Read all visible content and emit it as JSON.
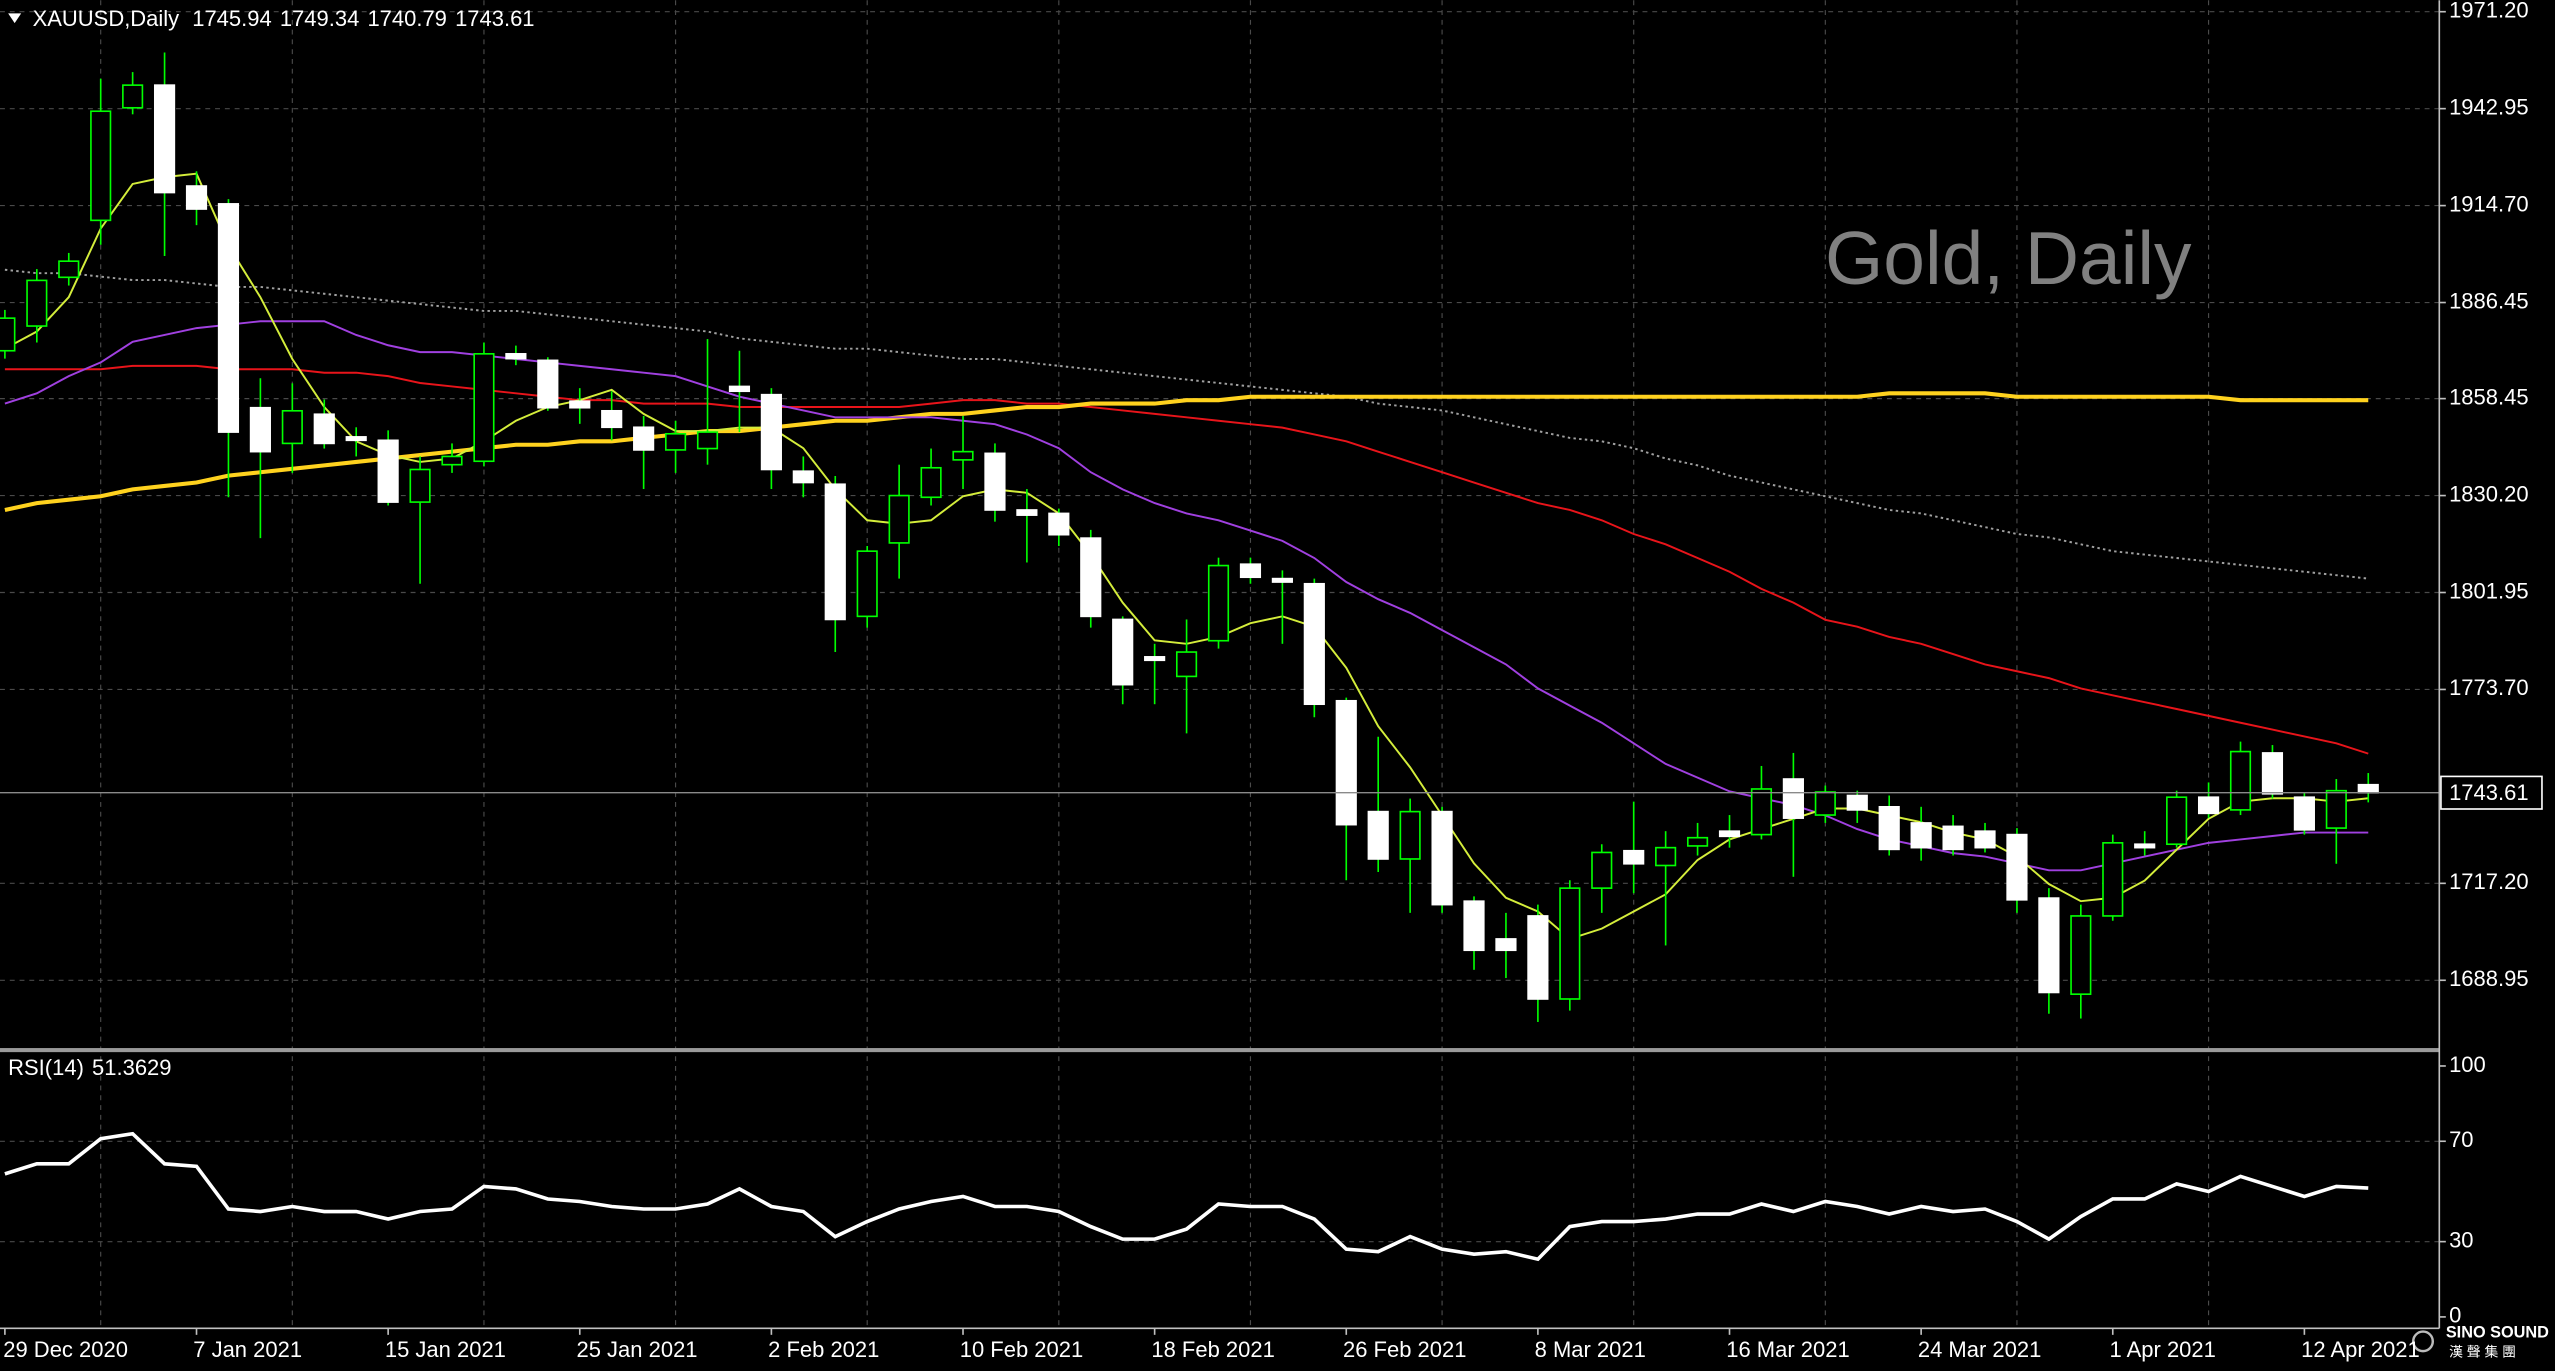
{
  "chart_data": [
    {
      "type": "candlestick",
      "symbol": "XAUUSD,Daily",
      "watermark": "Gold, Daily",
      "categories": [
        "29 Dec 2020",
        null,
        null,
        null,
        null,
        null,
        "7 Jan 2021",
        null,
        null,
        null,
        null,
        null,
        "15 Jan 2021",
        null,
        null,
        null,
        null,
        null,
        "25 Jan 2021",
        null,
        null,
        null,
        null,
        null,
        "2 Feb 2021",
        null,
        null,
        null,
        null,
        null,
        "10 Feb 2021",
        null,
        null,
        null,
        null,
        null,
        "18 Feb 2021",
        null,
        null,
        null,
        null,
        null,
        "26 Feb 2021",
        null,
        null,
        null,
        null,
        null,
        "8 Mar 2021",
        null,
        null,
        null,
        null,
        null,
        "16 Mar 2021",
        null,
        null,
        null,
        null,
        null,
        "24 Mar 2021",
        null,
        null,
        null,
        null,
        null,
        "1 Apr 2021",
        null,
        null,
        null,
        null,
        null,
        "12 Apr 2021",
        null,
        null
      ],
      "open": [
        1872.4,
        1879.6,
        1893.8,
        1910.4,
        1943.2,
        1949.8,
        1920.4,
        1915.2,
        1855.8,
        1845.4,
        1853.9,
        1847.3,
        1846.3,
        1828.3,
        1839.2,
        1840.2,
        1871.5,
        1869.6,
        1857.7,
        1854.9,
        1850.1,
        1843.5,
        1843.9,
        1862.0,
        1859.6,
        1837.3,
        1833.5,
        1795.0,
        1816.4,
        1829.7,
        1840.6,
        1842.5,
        1826.0,
        1825.0,
        1817.8,
        1794.1,
        1783.2,
        1777.5,
        1787.9,
        1810.2,
        1806.0,
        1804.5,
        1770.4,
        1738.1,
        1724.3,
        1738.1,
        1712.0,
        1701.0,
        1707.7,
        1683.5,
        1715.8,
        1726.7,
        1722.4,
        1728.1,
        1732.4,
        1731.4,
        1747.6,
        1737.1,
        1742.8,
        1739.5,
        1734.8,
        1733.8,
        1732.4,
        1731.4,
        1712.9,
        1684.9,
        1707.7,
        1728.6,
        1728.6,
        1742.3,
        1738.6,
        1755.2,
        1742.3,
        1733.3,
        1745.94
      ],
      "high": [
        1884.3,
        1896.2,
        1900.9,
        1951.7,
        1953.6,
        1959.3,
        1924.7,
        1916.6,
        1864.4,
        1862.9,
        1858.2,
        1850.1,
        1849.2,
        1841.6,
        1845.4,
        1874.8,
        1873.9,
        1870.5,
        1861.5,
        1860.6,
        1853.4,
        1852.0,
        1875.8,
        1872.4,
        1861.5,
        1841.6,
        1835.9,
        1815.5,
        1839.2,
        1843.9,
        1853.4,
        1845.4,
        1832.1,
        1826.4,
        1820.2,
        1795.0,
        1787.0,
        1794.1,
        1812.1,
        1812.1,
        1808.4,
        1806.0,
        1771.3,
        1759.9,
        1741.9,
        1739.5,
        1713.4,
        1708.6,
        1711.0,
        1718.1,
        1728.6,
        1741.0,
        1732.4,
        1734.8,
        1737.1,
        1751.4,
        1755.2,
        1745.7,
        1744.2,
        1742.8,
        1739.5,
        1737.1,
        1734.8,
        1733.3,
        1715.8,
        1711.0,
        1731.4,
        1732.4,
        1744.2,
        1746.6,
        1758.5,
        1757.5,
        1743.8,
        1747.6,
        1749.34
      ],
      "low": [
        1870.1,
        1874.8,
        1891.4,
        1903.3,
        1941.3,
        1900.0,
        1909.0,
        1829.7,
        1817.8,
        1836.8,
        1843.9,
        1841.6,
        1827.3,
        1804.5,
        1836.8,
        1838.7,
        1868.2,
        1854.9,
        1851.1,
        1846.3,
        1832.1,
        1836.8,
        1839.2,
        1848.7,
        1832.1,
        1829.7,
        1784.6,
        1791.7,
        1806.0,
        1827.3,
        1832.1,
        1822.6,
        1810.7,
        1815.5,
        1791.7,
        1769.4,
        1769.4,
        1760.9,
        1785.6,
        1804.5,
        1787.0,
        1765.6,
        1718.1,
        1720.5,
        1708.6,
        1708.6,
        1692.0,
        1689.6,
        1676.8,
        1680.1,
        1708.6,
        1714.3,
        1699.1,
        1725.3,
        1727.6,
        1730.0,
        1719.1,
        1734.8,
        1734.8,
        1725.3,
        1723.8,
        1725.3,
        1726.2,
        1708.6,
        1679.2,
        1677.8,
        1706.3,
        1725.3,
        1727.6,
        1736.2,
        1737.1,
        1741.9,
        1731.4,
        1722.9,
        1740.79
      ],
      "close": [
        1881.9,
        1892.9,
        1898.5,
        1942.2,
        1949.8,
        1918.5,
        1913.7,
        1848.7,
        1843.0,
        1854.9,
        1845.4,
        1846.3,
        1828.3,
        1837.8,
        1841.6,
        1871.5,
        1870.1,
        1855.8,
        1855.8,
        1850.1,
        1843.5,
        1848.2,
        1848.7,
        1860.6,
        1837.8,
        1834.0,
        1794.1,
        1814.0,
        1830.2,
        1838.3,
        1843.0,
        1826.0,
        1824.5,
        1818.8,
        1795.0,
        1775.1,
        1782.2,
        1784.6,
        1809.8,
        1806.4,
        1805.0,
        1769.4,
        1734.3,
        1724.3,
        1738.1,
        1711.0,
        1697.7,
        1697.7,
        1683.5,
        1715.8,
        1726.2,
        1722.9,
        1727.6,
        1730.5,
        1730.9,
        1744.7,
        1736.2,
        1743.8,
        1738.6,
        1727.1,
        1727.6,
        1727.1,
        1727.6,
        1712.4,
        1685.4,
        1707.7,
        1729.0,
        1727.6,
        1742.3,
        1737.6,
        1755.6,
        1743.3,
        1732.8,
        1744.2,
        1743.61
      ],
      "wick_color": "#00ff00",
      "up_color": "#00ff00",
      "up_fill": "#000000",
      "down_color": "#ffffff",
      "down_fill": "#ffffff",
      "overlays": [
        {
          "color": "#a0a0a0",
          "dashed": true,
          "values": [
            1896,
            1895,
            1895,
            1894,
            1893,
            1893,
            1892,
            1891,
            1891,
            1890,
            1889,
            1888,
            1887,
            1886,
            1885,
            1884,
            1884,
            1883,
            1882,
            1881,
            1880,
            1879,
            1878,
            1876,
            1875,
            1874,
            1873,
            1873,
            1872,
            1871,
            1870,
            1870,
            1869,
            1868,
            1867,
            1866,
            1865,
            1864,
            1863,
            1862,
            1861,
            1860,
            1859,
            1857,
            1856,
            1855,
            1853,
            1851,
            1849,
            1847,
            1846,
            1844,
            1841,
            1839,
            1836,
            1834,
            1832,
            1830,
            1828,
            1826,
            1825,
            1823,
            1821,
            1819,
            1818,
            1816,
            1814,
            1813,
            1812,
            1811,
            1810,
            1809,
            1808,
            1807,
            1806
          ]
        },
        {
          "color": "#e8141a",
          "values": [
            1867,
            1867,
            1867,
            1867,
            1868,
            1868,
            1868,
            1867,
            1867,
            1867,
            1866,
            1866,
            1865,
            1863,
            1862,
            1861,
            1860,
            1859,
            1858,
            1858,
            1857,
            1857,
            1857,
            1856,
            1856,
            1856,
            1856,
            1856,
            1856,
            1857,
            1858,
            1858,
            1857,
            1857,
            1856,
            1855,
            1854,
            1853,
            1852,
            1851,
            1850,
            1848,
            1846,
            1843,
            1840,
            1837,
            1834,
            1831,
            1828,
            1826,
            1823,
            1819,
            1816,
            1812,
            1808,
            1803,
            1799,
            1794,
            1792,
            1789,
            1787,
            1784,
            1781,
            1779,
            1777,
            1774,
            1772,
            1770,
            1768,
            1766,
            1764,
            1762,
            1760,
            1758,
            1755
          ]
        },
        {
          "color": "#ffd21e",
          "width": 2.5,
          "values": [
            1826,
            1828,
            1829,
            1830,
            1832,
            1833,
            1834,
            1836,
            1837,
            1838,
            1839,
            1840,
            1841,
            1842,
            1843,
            1844,
            1845,
            1845,
            1846,
            1846,
            1847,
            1848,
            1849,
            1849,
            1850,
            1851,
            1852,
            1852,
            1853,
            1854,
            1854,
            1855,
            1856,
            1856,
            1857,
            1857,
            1857,
            1858,
            1858,
            1859,
            1859,
            1859,
            1859,
            1859,
            1859,
            1859,
            1859,
            1859,
            1859,
            1859,
            1859,
            1859,
            1859,
            1859,
            1859,
            1859,
            1859,
            1859,
            1859,
            1860,
            1860,
            1860,
            1860,
            1859,
            1859,
            1859,
            1859,
            1859,
            1859,
            1859,
            1858,
            1858,
            1858,
            1858,
            1858
          ]
        },
        {
          "color": "#a040e0",
          "values": [
            1857,
            1860,
            1865,
            1869,
            1875,
            1877,
            1879,
            1880,
            1881,
            1881,
            1881,
            1877,
            1874,
            1872,
            1872,
            1871,
            1870,
            1869,
            1868,
            1867,
            1866,
            1865,
            1862,
            1859,
            1857,
            1855,
            1853,
            1853,
            1853,
            1853,
            1852,
            1851,
            1848,
            1844,
            1837,
            1832,
            1828,
            1825,
            1823,
            1820,
            1817,
            1812,
            1805,
            1800,
            1796,
            1791,
            1786,
            1781,
            1774,
            1769,
            1764,
            1758,
            1752,
            1748,
            1744,
            1742,
            1740,
            1737,
            1733,
            1730,
            1728,
            1726,
            1725,
            1723,
            1721,
            1721,
            1723,
            1725,
            1727,
            1729,
            1730,
            1731,
            1732,
            1732,
            1732
          ]
        },
        {
          "color": "#d4ed3b",
          "values": [
            1873,
            1878,
            1888,
            1908,
            1921,
            1923,
            1924,
            1903,
            1888,
            1870,
            1856,
            1846,
            1842,
            1840,
            1841,
            1846,
            1852,
            1856,
            1858,
            1861,
            1854,
            1849,
            1849,
            1850,
            1850,
            1844,
            1832,
            1823,
            1822,
            1823,
            1830,
            1832,
            1831,
            1825,
            1813,
            1799,
            1788,
            1787,
            1789,
            1793,
            1795,
            1792,
            1780,
            1763,
            1751,
            1737,
            1723,
            1713,
            1709,
            1701,
            1704,
            1709,
            1714,
            1724,
            1730,
            1733,
            1736,
            1739,
            1739,
            1737,
            1735,
            1732,
            1730,
            1725,
            1717,
            1712,
            1713,
            1718,
            1727,
            1736,
            1741,
            1742,
            1742,
            1741,
            1742
          ]
        }
      ],
      "ylim": [
        1669.2,
        1974.52
      ],
      "yticks": [
        {
          "value": 1971.2,
          "label": "1971.20"
        },
        1942.95,
        {
          "value": 1914.7,
          "label": "1914.70"
        },
        1886.45,
        1858.45,
        {
          "value": 1830.2,
          "label": "1830.20"
        },
        1801.95,
        {
          "value": 1773.7,
          "label": "1773.70"
        },
        {
          "value": 1717.2,
          "label": "1717.20"
        },
        1688.95
      ],
      "grid": true
    },
    {
      "type": "line",
      "title": "RSI(14)",
      "color": "#ffffff",
      "values": [
        57,
        61,
        61,
        71,
        73,
        61,
        60,
        43,
        42,
        44,
        42,
        42,
        39,
        42,
        43,
        52,
        51,
        47,
        46,
        44,
        43,
        43,
        45,
        51,
        44,
        42,
        32,
        38,
        43,
        46,
        48,
        44,
        44,
        42,
        36,
        31,
        31,
        35,
        45,
        44,
        44,
        39,
        27,
        26,
        32,
        27,
        25,
        26,
        23,
        36,
        38,
        38,
        39,
        41,
        41,
        45,
        42,
        46,
        44,
        41,
        44,
        42,
        43,
        38,
        31,
        40,
        47,
        47,
        53,
        50,
        56,
        52,
        48,
        52,
        51.3629
      ],
      "ylim": [
        0,
        100
      ],
      "yticks": [
        100,
        70,
        30,
        0
      ],
      "grid": true
    }
  ],
  "logo": {
    "name": "SINO SOUND",
    "subtitle": "漢 聲 集 團"
  }
}
